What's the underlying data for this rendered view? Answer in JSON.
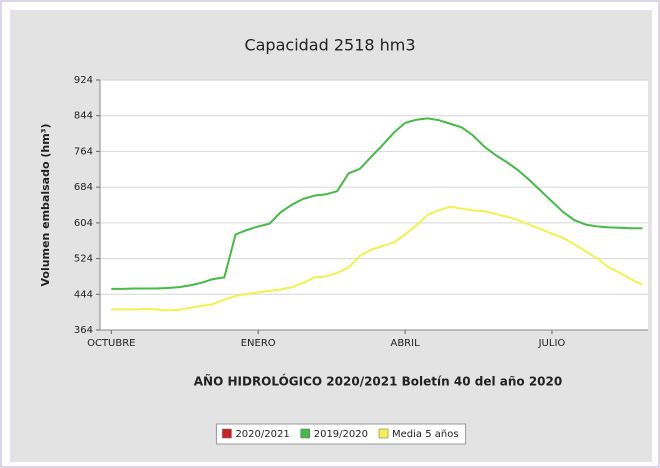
{
  "chart_data": {
    "type": "line",
    "title": "Capacidad 2518 hm3",
    "x_label": "AÑO HIDROLÓGICO 2020/2021 Boletín 40 del año 2020",
    "y_label": "Volumen   embalsado   (hm³)",
    "x": [
      0,
      1,
      2,
      3,
      4,
      5,
      6,
      7,
      8,
      9,
      10,
      11,
      12,
      13,
      14,
      15,
      16,
      17,
      18,
      19,
      20,
      21,
      22,
      23,
      24,
      25,
      26,
      27,
      28,
      29,
      30,
      31,
      32,
      33,
      34,
      35,
      36,
      37,
      38,
      39,
      40,
      41,
      42,
      43,
      44,
      45,
      46,
      47
    ],
    "series": [
      {
        "name": "2020/2021",
        "color": "#cc2222",
        "values": [
          null,
          null,
          null,
          null,
          null,
          null,
          null,
          null,
          null,
          null,
          null,
          null,
          null,
          null,
          null,
          null,
          null,
          null,
          null,
          null,
          null,
          null,
          null,
          null,
          null,
          null,
          null,
          null,
          null,
          null,
          null,
          null,
          null,
          null,
          null,
          null,
          null,
          null,
          null,
          null,
          null,
          null,
          null,
          null,
          null,
          null,
          null,
          null
        ]
      },
      {
        "name": "2019/2020",
        "color": "#44bb44",
        "values": [
          456,
          456,
          457,
          457,
          457,
          458,
          460,
          464,
          470,
          478,
          482,
          578,
          588,
          596,
          602,
          628,
          645,
          658,
          665,
          668,
          675,
          715,
          725,
          752,
          778,
          806,
          828,
          835,
          838,
          834,
          826,
          818,
          800,
          775,
          756,
          740,
          722,
          700,
          676,
          652,
          628,
          610,
          600,
          596,
          594,
          593,
          592,
          592
        ]
      },
      {
        "name": "Media 5 años",
        "color": "#f2f24a",
        "values": [
          410,
          410,
          410,
          411,
          410,
          408,
          409,
          414,
          418,
          422,
          432,
          440,
          445,
          448,
          452,
          455,
          460,
          470,
          482,
          484,
          492,
          504,
          530,
          544,
          552,
          560,
          578,
          598,
          622,
          632,
          640,
          636,
          632,
          630,
          624,
          618,
          610,
          600,
          590,
          580,
          570,
          556,
          540,
          524,
          505,
          492,
          478,
          465
        ]
      }
    ],
    "xlim": [
      -1,
      47.5
    ],
    "xticks": [
      {
        "value": 0,
        "label": "OCTUBRE"
      },
      {
        "value": 13,
        "label": "ENERO"
      },
      {
        "value": 26,
        "label": "ABRIL"
      },
      {
        "value": 39,
        "label": "JULIO"
      }
    ],
    "ylim": [
      364,
      924
    ],
    "yticks": [
      364,
      444,
      524,
      604,
      684,
      764,
      844,
      924
    ],
    "grid": true,
    "legend": "bottom"
  }
}
